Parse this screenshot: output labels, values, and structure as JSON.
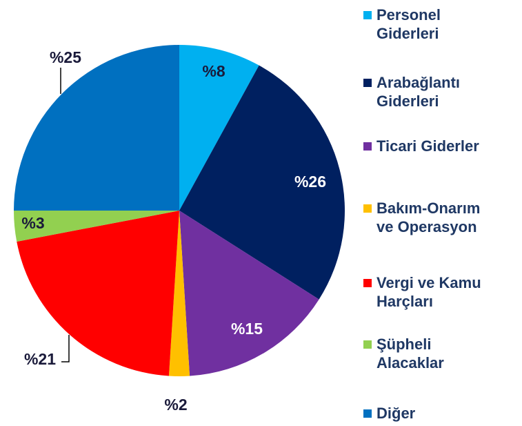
{
  "chart_data": {
    "type": "pie",
    "categories": [
      "Personel Giderleri",
      "Arabağlantı Giderleri",
      "Ticari Giderler",
      "Bakım-Onarım ve Operasyon",
      "Vergi ve Kamu Harçları",
      "Şüpheli Alacaklar",
      "Diğer"
    ],
    "values": [
      8,
      26,
      15,
      2,
      21,
      3,
      25
    ],
    "value_labels": [
      "%8",
      "%26",
      "%15",
      "%2",
      "%21",
      "%3",
      "%25"
    ],
    "colors": [
      "#00B0F0",
      "#002060",
      "#7030A0",
      "#FFC000",
      "#FF0000",
      "#92D050",
      "#0070C0"
    ]
  }
}
